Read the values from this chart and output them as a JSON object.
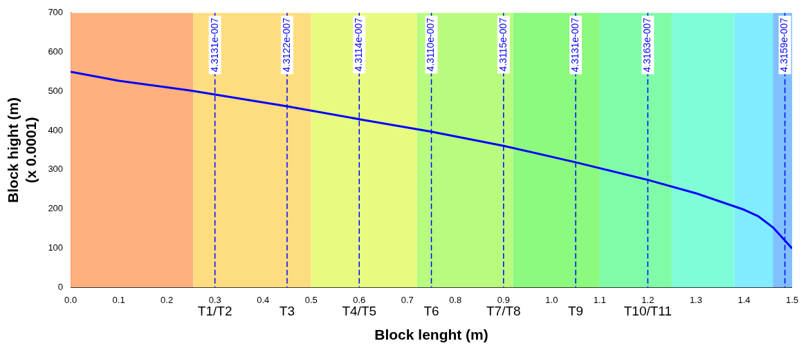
{
  "chart_data": {
    "type": "line",
    "xlabel": "Block lenght (m)",
    "ylabel": "Block hight (m)\n(x 0.0001)",
    "x": [
      0,
      0.1,
      0.25,
      0.45,
      0.6,
      0.75,
      0.9,
      1.05,
      1.2,
      1.3,
      1.4,
      1.43,
      1.46,
      1.5
    ],
    "series": [
      {
        "color": "#0000ff",
        "values": [
          550,
          527,
          502,
          462,
          429,
          397,
          361,
          319,
          274,
          240,
          198,
          181,
          153,
          99
        ]
      }
    ],
    "xlim": [
      0,
      1.5
    ],
    "ylim": [
      0,
      700
    ],
    "xticks": [
      {
        "value": 0,
        "label": "0.0"
      },
      {
        "value": 0.1,
        "label": "0.1"
      },
      {
        "value": 0.2,
        "label": "0.2"
      },
      {
        "value": 0.3,
        "label": "0.3"
      },
      {
        "value": 0.4,
        "label": "0.4"
      },
      {
        "value": 0.5,
        "label": "0.5"
      },
      {
        "value": 0.6,
        "label": "0.6"
      },
      {
        "value": 0.7,
        "label": "0.7"
      },
      {
        "value": 0.8,
        "label": "0.8"
      },
      {
        "value": 0.9,
        "label": "0.9"
      },
      {
        "value": 1,
        "label": "1.0"
      },
      {
        "value": 1.1,
        "label": "1.1"
      },
      {
        "value": 1.2,
        "label": "1.2"
      },
      {
        "value": 1.3,
        "label": "1.3"
      },
      {
        "value": 1.4,
        "label": "1.4"
      },
      {
        "value": 1.5,
        "label": "1.5"
      }
    ],
    "yticks": [
      0,
      100,
      200,
      300,
      400,
      500,
      600,
      700
    ],
    "grid": false,
    "legend": false,
    "marker": "none",
    "line_style": "solid",
    "bands": [
      {
        "axis": "x",
        "from": 0,
        "to": 0.255,
        "color": "#ffb07d"
      },
      {
        "axis": "x",
        "from": 0.255,
        "to": 0.5,
        "color": "#fedd80"
      },
      {
        "axis": "x",
        "from": 0.5,
        "to": 0.72,
        "color": "#e8fb80"
      },
      {
        "axis": "x",
        "from": 0.72,
        "to": 0.92,
        "color": "#b9fb7f"
      },
      {
        "axis": "x",
        "from": 0.92,
        "to": 1.1,
        "color": "#8bfa7e"
      },
      {
        "axis": "x",
        "from": 1.1,
        "to": 1.25,
        "color": "#80fca8"
      },
      {
        "axis": "x",
        "from": 1.25,
        "to": 1.38,
        "color": "#7ffcd8"
      },
      {
        "axis": "x",
        "from": 1.38,
        "to": 1.46,
        "color": "#80ecfe"
      },
      {
        "axis": "x",
        "from": 1.46,
        "to": 1.5,
        "color": "#80c0ff"
      }
    ],
    "ref_lines": [
      {
        "axis": "x",
        "value": 0.3,
        "label": "4.3131e-007",
        "color": "#0000ff",
        "line_style": "dashed"
      },
      {
        "axis": "x",
        "value": 0.45,
        "label": "4.3122e-007",
        "color": "#0000ff",
        "line_style": "dashed"
      },
      {
        "axis": "x",
        "value": 0.6,
        "label": "4.3114e-007",
        "color": "#0000ff",
        "line_style": "dashed"
      },
      {
        "axis": "x",
        "value": 0.75,
        "label": "4.3110e-007",
        "color": "#0000ff",
        "line_style": "dashed"
      },
      {
        "axis": "x",
        "value": 0.9,
        "label": "4.3115e-007",
        "color": "#0000ff",
        "line_style": "dashed"
      },
      {
        "axis": "x",
        "value": 1.05,
        "label": "4.3131e-007",
        "color": "#0000ff",
        "line_style": "dashed"
      },
      {
        "axis": "x",
        "value": 1.2,
        "label": "4.3163e-007",
        "color": "#0000ff",
        "line_style": "dashed"
      },
      {
        "axis": "x",
        "value": 1.485,
        "label": "4.3159e-007",
        "color": "#0000ff",
        "line_style": "dashed"
      }
    ],
    "annotations": [
      "T1/T2",
      "T3",
      "T4/T5",
      "T6",
      "T7/T8",
      "T9",
      "T10/T11"
    ]
  }
}
